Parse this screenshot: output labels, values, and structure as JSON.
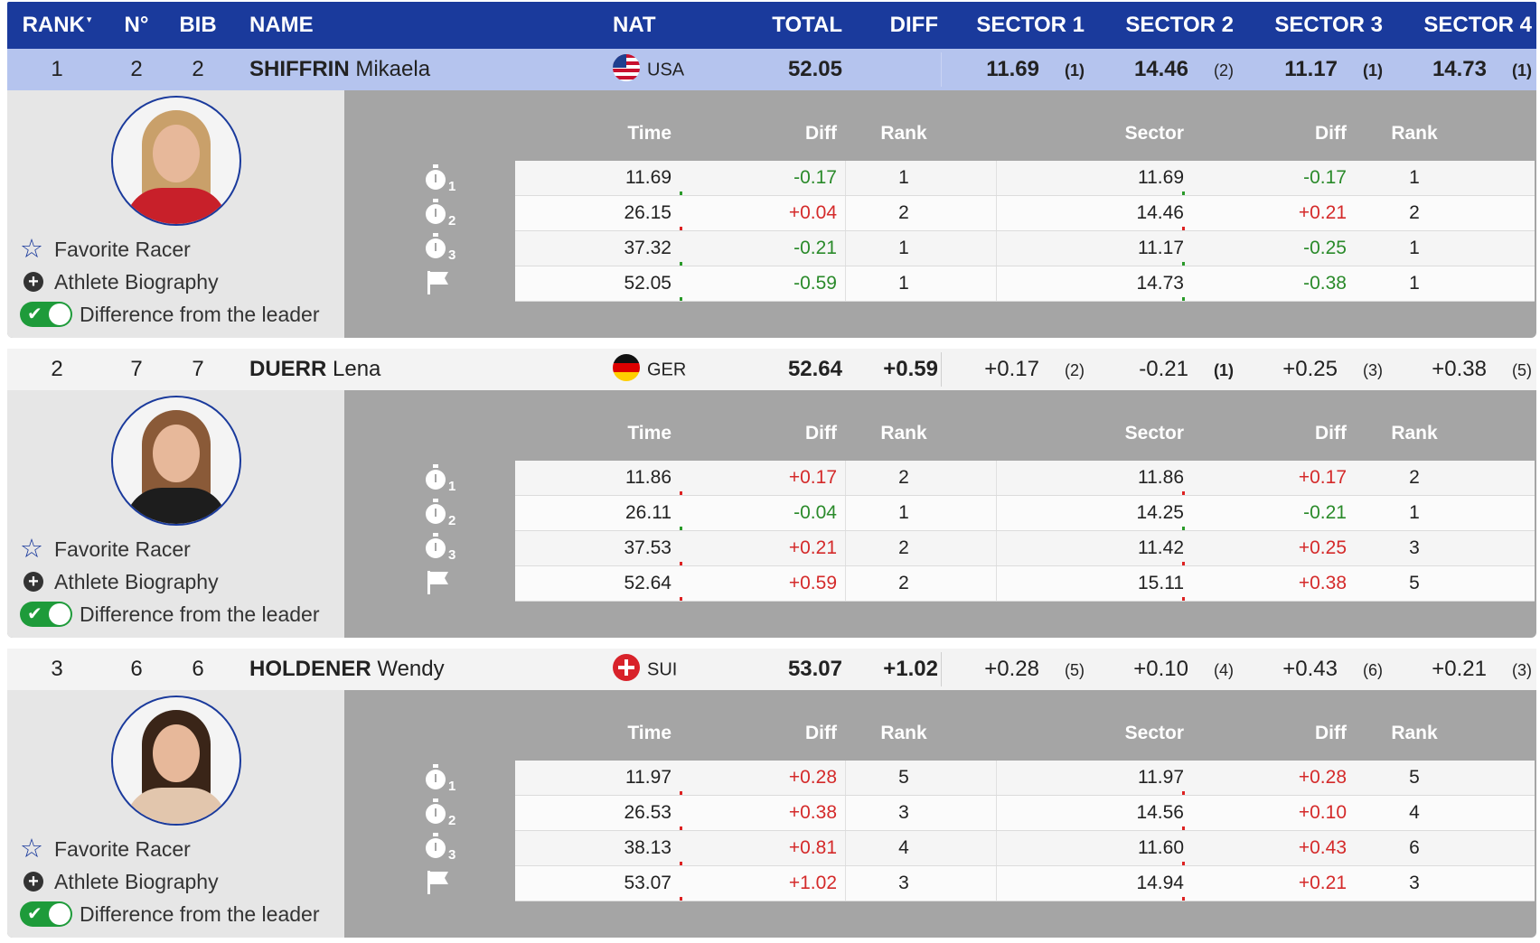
{
  "header": {
    "rank": "RANK",
    "rank_sort_indicator": "▾",
    "no": "N°",
    "bib": "BIB",
    "name": "NAME",
    "nat": "NAT",
    "total": "TOTAL",
    "diff": "DIFF",
    "sector1": "SECTOR 1",
    "sector2": "SECTOR 2",
    "sector3": "SECTOR 3",
    "sector4": "SECTOR 4"
  },
  "detail_columns": {
    "time": "Time",
    "diff": "Diff",
    "rank": "Rank",
    "sector": "Sector",
    "sector_diff": "Diff",
    "sector_rank": "Rank"
  },
  "links": {
    "favorite": "Favorite Racer",
    "biography": "Athlete Biography",
    "difference": "Difference from the leader"
  },
  "split_icons": [
    "stopwatch-icon-1",
    "stopwatch-icon-2",
    "stopwatch-icon-3",
    "finish-flag-icon"
  ],
  "split_numbers": [
    "1",
    "2",
    "3"
  ],
  "colors": {
    "header": "#1a3a9c",
    "leader_row": "#b5c4ee",
    "positive": "#d42a2a",
    "negative": "#2a8a2a",
    "toggle_on": "#1e9b3a"
  },
  "racers": [
    {
      "rank": "1",
      "no": "2",
      "bib": "2",
      "surname": "SHIFFRIN",
      "firstname": "Mikaela",
      "nat": "USA",
      "total": "52.05",
      "diff": "",
      "sectors": [
        {
          "value": "11.69",
          "rank": "(1)"
        },
        {
          "value": "14.46",
          "rank": "(2)"
        },
        {
          "value": "11.17",
          "rank": "(1)"
        },
        {
          "value": "14.73",
          "rank": "(1)"
        }
      ],
      "splits": [
        {
          "time": "11.69",
          "diff": "-0.17",
          "rank": "1",
          "sector": "11.69",
          "sdiff": "-0.17",
          "srank": "1"
        },
        {
          "time": "26.15",
          "diff": "+0.04",
          "rank": "2",
          "sector": "14.46",
          "sdiff": "+0.21",
          "srank": "2"
        },
        {
          "time": "37.32",
          "diff": "-0.21",
          "rank": "1",
          "sector": "11.17",
          "sdiff": "-0.25",
          "srank": "1"
        },
        {
          "time": "52.05",
          "diff": "-0.59",
          "rank": "1",
          "sector": "14.73",
          "sdiff": "-0.38",
          "srank": "1"
        }
      ]
    },
    {
      "rank": "2",
      "no": "7",
      "bib": "7",
      "surname": "DUERR",
      "firstname": "Lena",
      "nat": "GER",
      "total": "52.64",
      "diff": "+0.59",
      "sectors": [
        {
          "value": "+0.17",
          "rank": "(2)"
        },
        {
          "value": "-0.21",
          "rank": "(1)"
        },
        {
          "value": "+0.25",
          "rank": "(3)"
        },
        {
          "value": "+0.38",
          "rank": "(5)"
        }
      ],
      "splits": [
        {
          "time": "11.86",
          "diff": "+0.17",
          "rank": "2",
          "sector": "11.86",
          "sdiff": "+0.17",
          "srank": "2"
        },
        {
          "time": "26.11",
          "diff": "-0.04",
          "rank": "1",
          "sector": "14.25",
          "sdiff": "-0.21",
          "srank": "1"
        },
        {
          "time": "37.53",
          "diff": "+0.21",
          "rank": "2",
          "sector": "11.42",
          "sdiff": "+0.25",
          "srank": "3"
        },
        {
          "time": "52.64",
          "diff": "+0.59",
          "rank": "2",
          "sector": "15.11",
          "sdiff": "+0.38",
          "srank": "5"
        }
      ]
    },
    {
      "rank": "3",
      "no": "6",
      "bib": "6",
      "surname": "HOLDENER",
      "firstname": "Wendy",
      "nat": "SUI",
      "total": "53.07",
      "diff": "+1.02",
      "sectors": [
        {
          "value": "+0.28",
          "rank": "(5)"
        },
        {
          "value": "+0.10",
          "rank": "(4)"
        },
        {
          "value": "+0.43",
          "rank": "(6)"
        },
        {
          "value": "+0.21",
          "rank": "(3)"
        }
      ],
      "splits": [
        {
          "time": "11.97",
          "diff": "+0.28",
          "rank": "5",
          "sector": "11.97",
          "sdiff": "+0.28",
          "srank": "5"
        },
        {
          "time": "26.53",
          "diff": "+0.38",
          "rank": "3",
          "sector": "14.56",
          "sdiff": "+0.10",
          "srank": "4"
        },
        {
          "time": "38.13",
          "diff": "+0.81",
          "rank": "4",
          "sector": "11.60",
          "sdiff": "+0.43",
          "srank": "6"
        },
        {
          "time": "53.07",
          "diff": "+1.02",
          "rank": "3",
          "sector": "14.94",
          "sdiff": "+0.21",
          "srank": "3"
        }
      ]
    }
  ]
}
